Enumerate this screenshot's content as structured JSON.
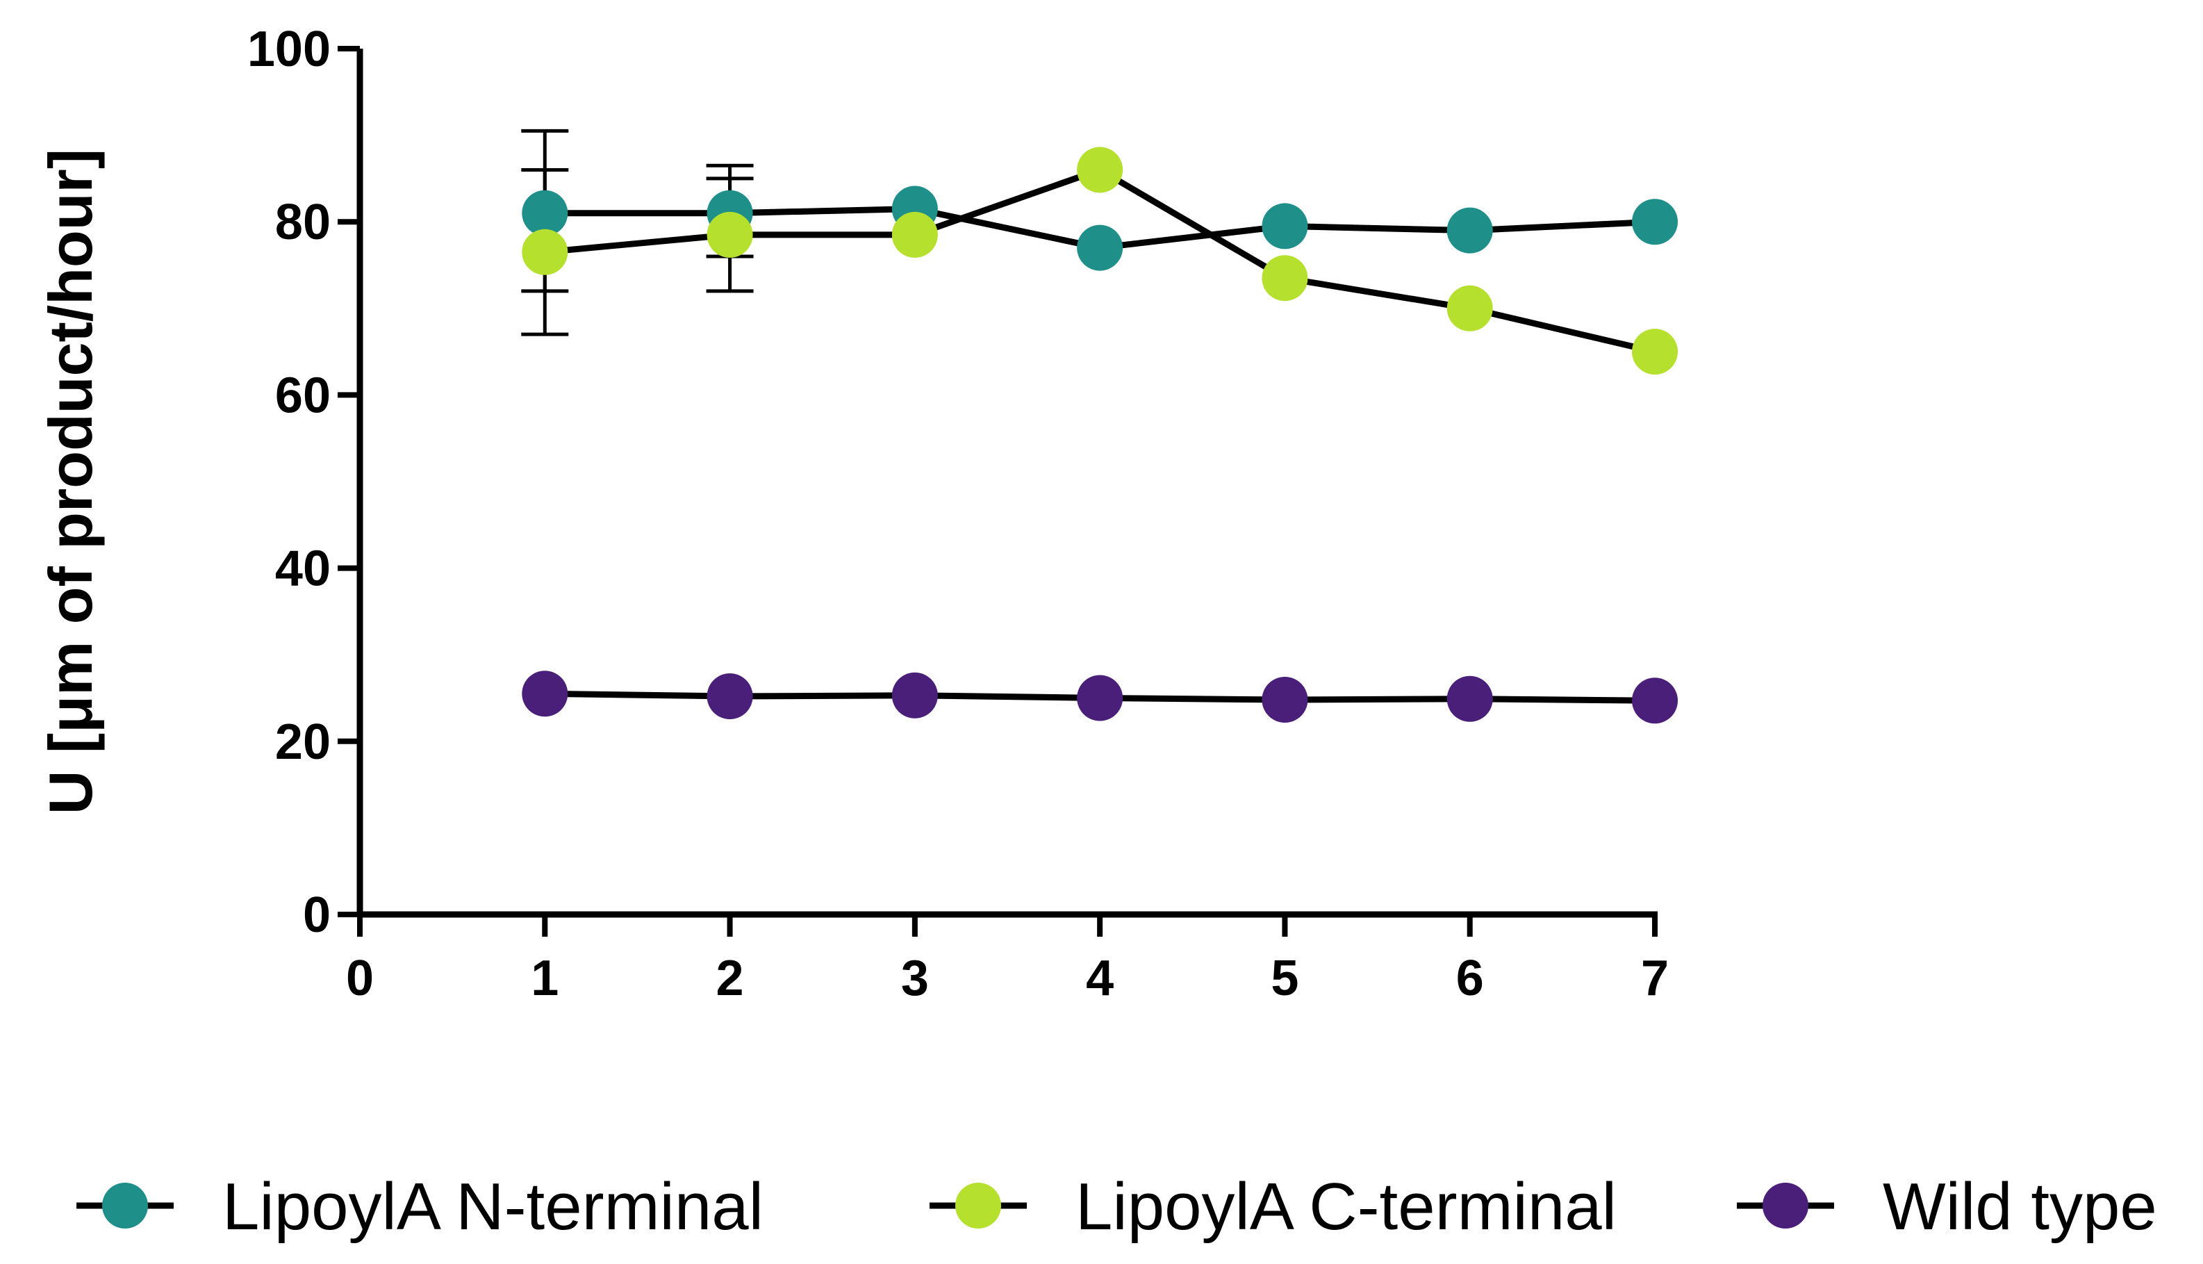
{
  "chart_data": {
    "type": "line",
    "title": "",
    "xlabel": "",
    "ylabel": "U [μm of product/hour]",
    "xlim": [
      0,
      7
    ],
    "ylim": [
      0,
      100
    ],
    "x_ticks": [
      0,
      1,
      2,
      3,
      4,
      5,
      6,
      7
    ],
    "y_ticks": [
      0,
      20,
      40,
      60,
      80,
      100
    ],
    "grid": false,
    "legend_position": "bottom",
    "x": [
      1,
      2,
      3,
      4,
      5,
      6,
      7
    ],
    "series": [
      {
        "name": "LipoylA N-terminal",
        "color": "#1f8f8a",
        "values": [
          81,
          81,
          81.5,
          77,
          79.5,
          79,
          80
        ],
        "error_bars": [
          {
            "x": 1,
            "low": 72,
            "high": 90.5
          },
          {
            "x": 2,
            "low": 76,
            "high": 86.5
          }
        ]
      },
      {
        "name": "LipoylA C-terminal",
        "color": "#b5e02e",
        "values": [
          76.5,
          78.5,
          78.5,
          86,
          73.5,
          70,
          65
        ],
        "error_bars": [
          {
            "x": 1,
            "low": 67,
            "high": 86
          },
          {
            "x": 2,
            "low": 72,
            "high": 85
          }
        ]
      },
      {
        "name": "Wild type",
        "color": "#4a1f7a",
        "values": [
          25.5,
          25.2,
          25.3,
          25,
          24.8,
          24.9,
          24.7
        ]
      }
    ]
  }
}
